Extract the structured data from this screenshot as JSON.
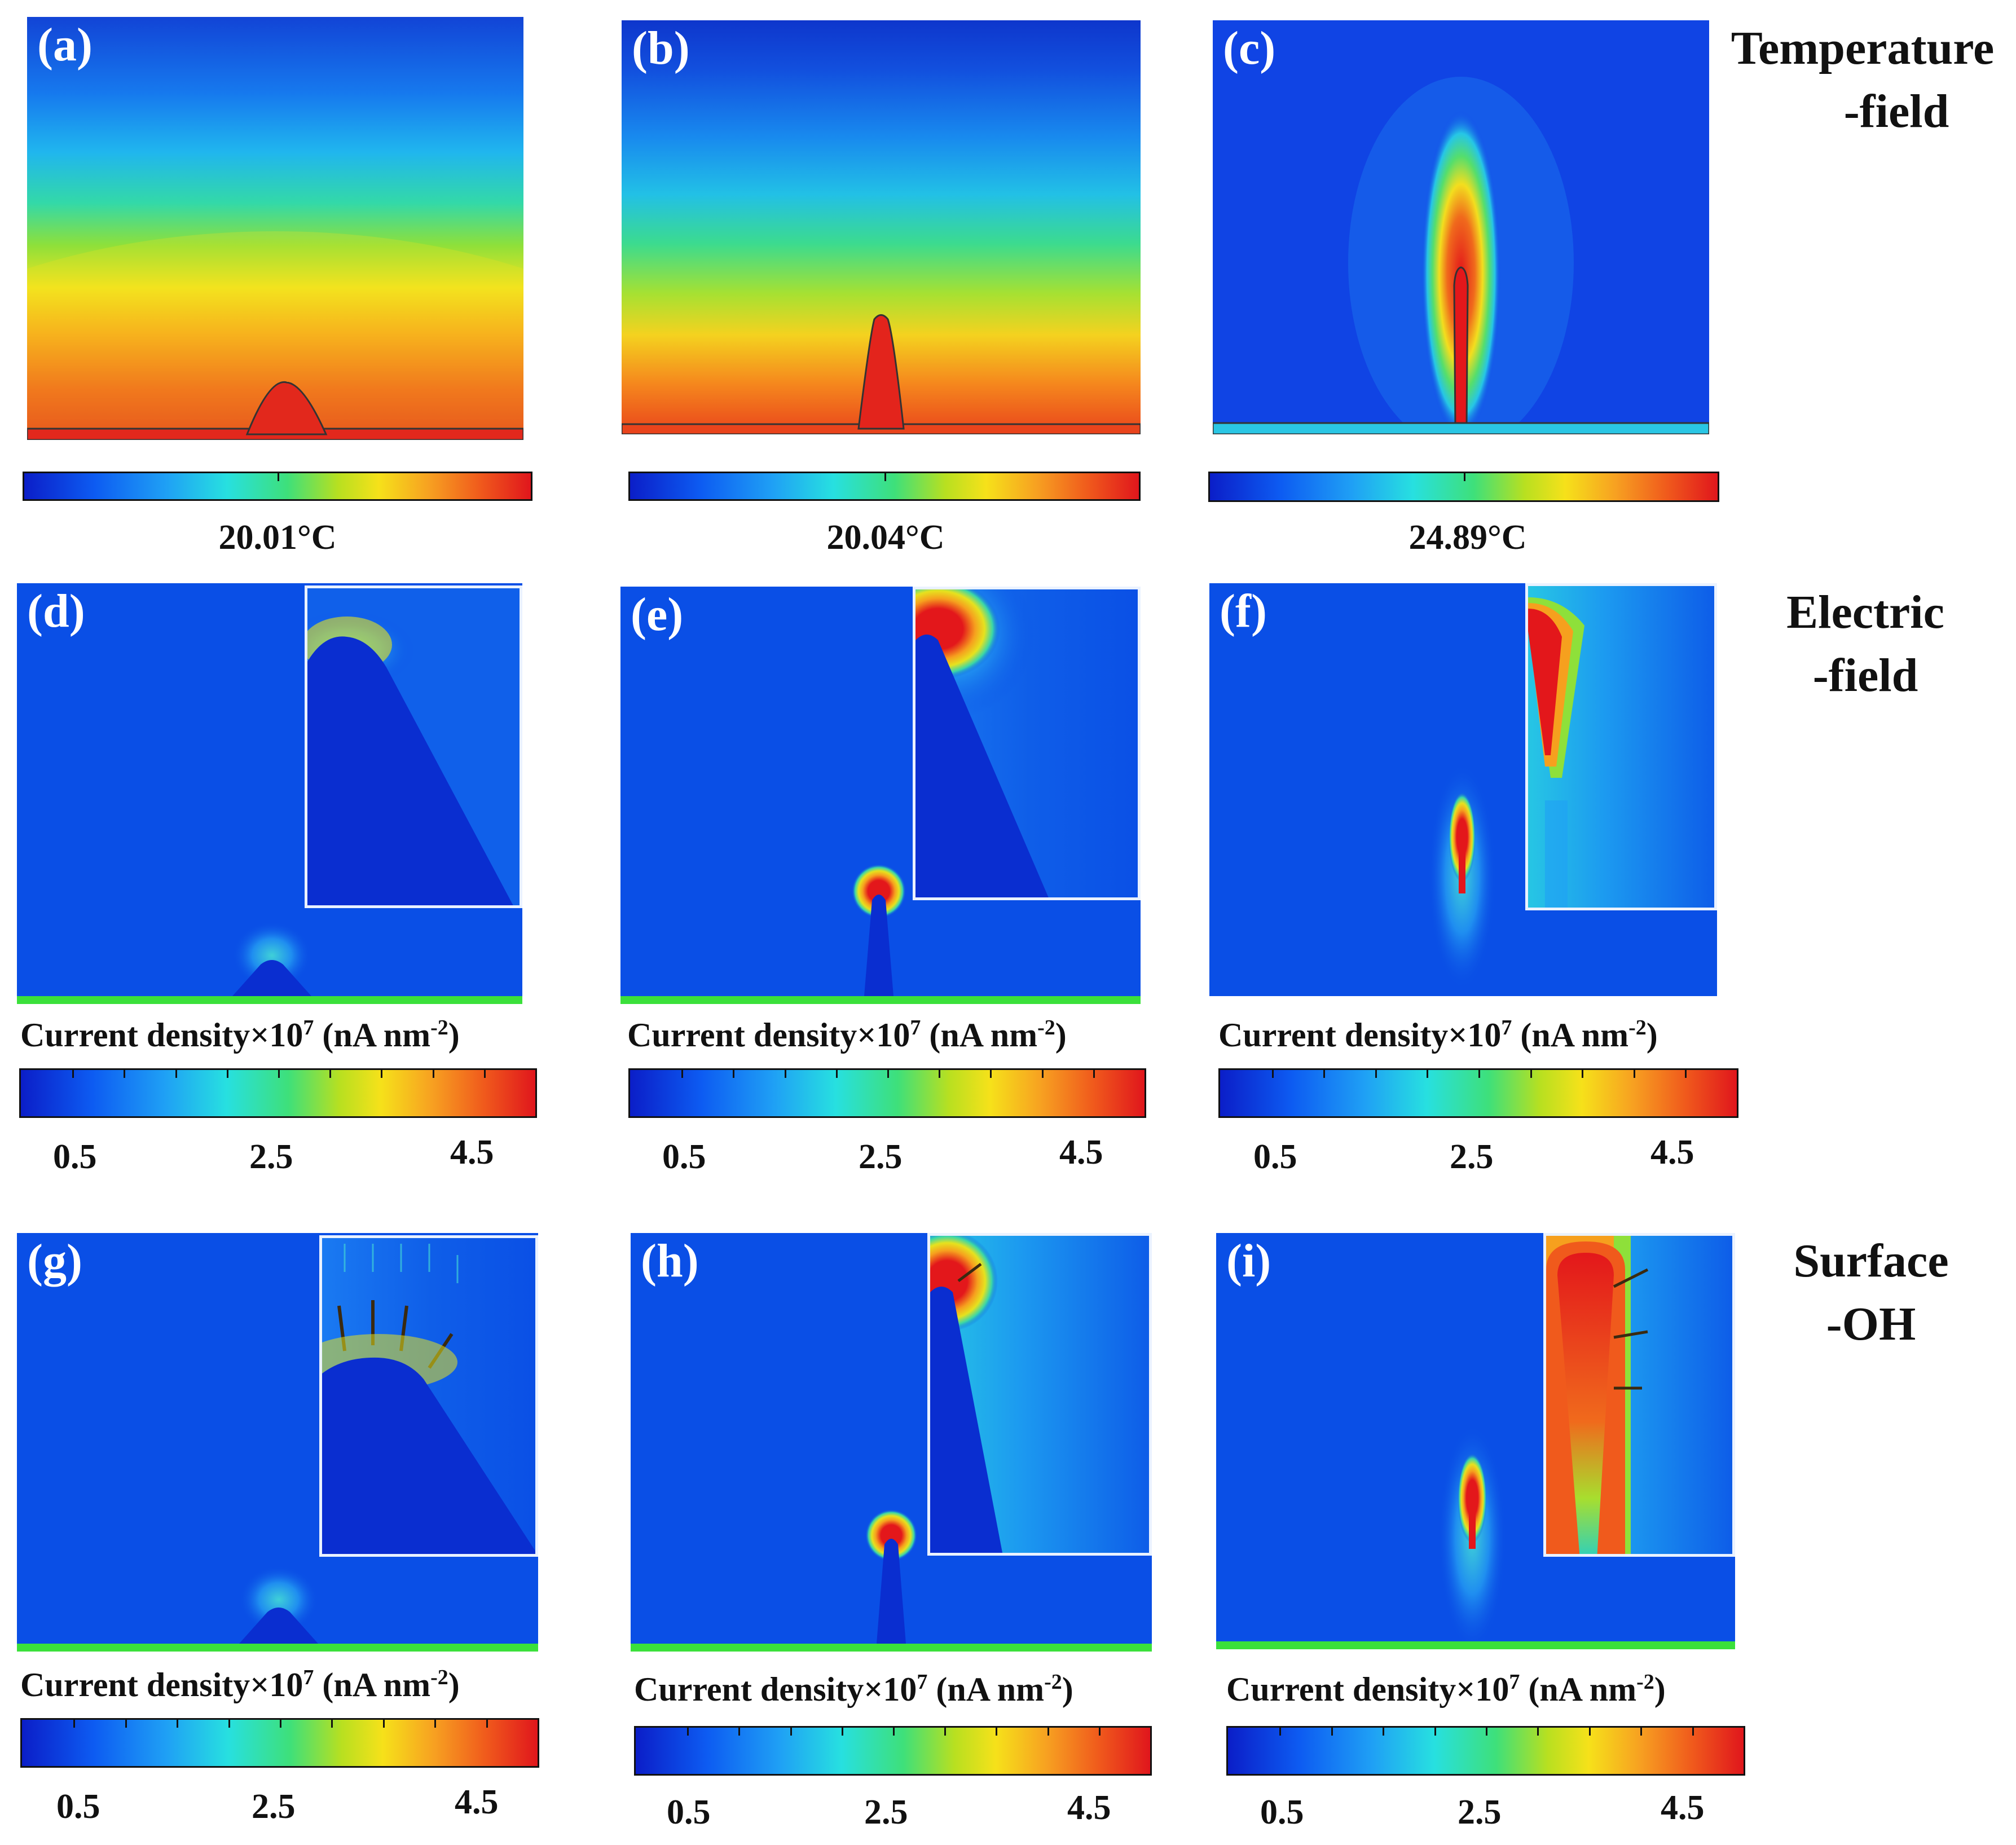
{
  "row_labels": {
    "temperature": {
      "line1": "Temperature",
      "line2": "-field"
    },
    "electric": {
      "line1": "Electric",
      "line2": "-field"
    },
    "surface": {
      "line1": "Surface",
      "line2": "-OH"
    }
  },
  "panels": {
    "a": {
      "label": "(a)",
      "temp": "20.01°C"
    },
    "b": {
      "label": "(b)",
      "temp": "20.04°C"
    },
    "c": {
      "label": "(c)",
      "temp": "24.89°C"
    },
    "d": {
      "label": "(d)"
    },
    "e": {
      "label": "(e)"
    },
    "f": {
      "label": "(f)"
    },
    "g": {
      "label": "(g)"
    },
    "h": {
      "label": "(h)"
    },
    "i": {
      "label": "(i)"
    }
  },
  "colorbar": {
    "title_main": "Current density×10",
    "title_exp": "7",
    "title_unit_open": " (nA nm",
    "title_unit_exp": "-2",
    "title_unit_close": ")",
    "tick_low": "0.5",
    "tick_mid": "2.5",
    "tick_high": "4.5"
  },
  "colors": {
    "field_blue": "#0a4fe6",
    "hot_red": "#e3171b",
    "substrate_green": "#3be03b"
  }
}
